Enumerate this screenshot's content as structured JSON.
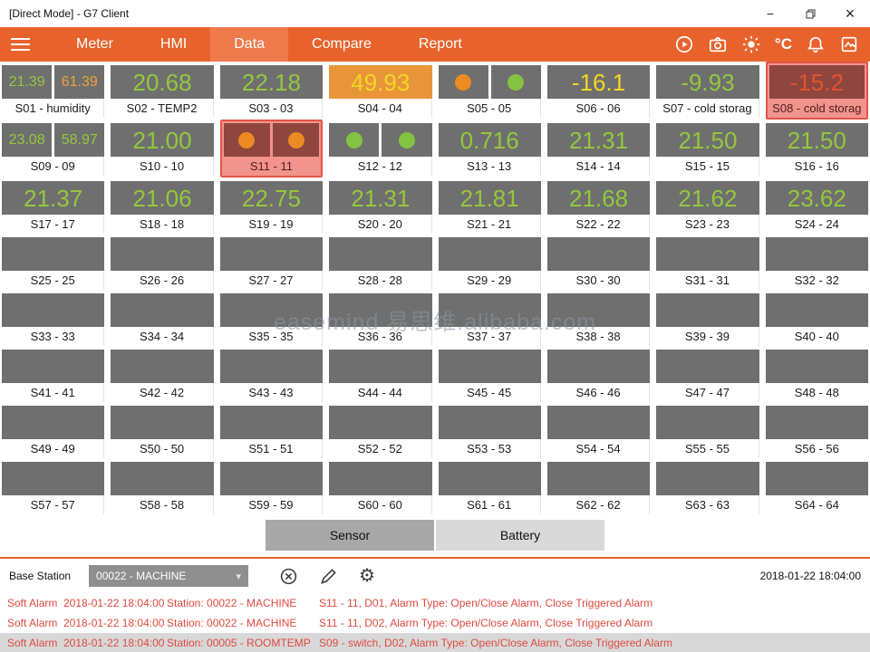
{
  "window": {
    "title": "[Direct Mode] - G7 Client"
  },
  "icons": {
    "minimize": "−",
    "close": "×",
    "chevron_down": "▾",
    "settings": "⚙"
  },
  "nav": {
    "tabs": [
      {
        "label": "Meter"
      },
      {
        "label": "HMI"
      },
      {
        "label": "Data",
        "active": true
      },
      {
        "label": "Compare"
      },
      {
        "label": "Report"
      }
    ],
    "temp_unit": "°C"
  },
  "colors": {
    "nav": "#E8632C",
    "nav_active": "#EF7B4D",
    "box_gray": "#6F6F6F",
    "value_green": "#93C83D",
    "value_orange": "#F0A13A",
    "value_yellow": "#F2D722",
    "value_red": "#E4532C",
    "alarm_pink": "#F2938C",
    "alarm_border": "#E15549",
    "alarm_text": "#E04A3F"
  },
  "grid": {
    "sensors": [
      {
        "label": "S01 - humidity",
        "kind": "dual",
        "values": [
          "21.39",
          "61.39"
        ],
        "colors": [
          "green",
          "orange"
        ]
      },
      {
        "label": "S02 - TEMP2",
        "kind": "value",
        "value": "20.68",
        "color": "green"
      },
      {
        "label": "S03 - 03",
        "kind": "value",
        "value": "22.18",
        "color": "green"
      },
      {
        "label": "S04 - 04",
        "kind": "value",
        "value": "49.93",
        "color": "yellow",
        "box": "orange"
      },
      {
        "label": "S05 - 05",
        "kind": "switch",
        "circles": [
          "orange",
          "green"
        ]
      },
      {
        "label": "S06 - 06",
        "kind": "value",
        "value": "-16.1",
        "color": "yellow"
      },
      {
        "label": "S07 - cold storag",
        "kind": "value",
        "value": "-9.93",
        "color": "green"
      },
      {
        "label": "S08 - cold storag",
        "kind": "value",
        "value": "-15.2",
        "color": "red",
        "alarm": true
      },
      {
        "label": "S09 - 09",
        "kind": "dual",
        "values": [
          "23.08",
          "58.97"
        ],
        "colors": [
          "green",
          "green"
        ]
      },
      {
        "label": "S10 - 10",
        "kind": "value",
        "value": "21.00",
        "color": "green"
      },
      {
        "label": "S11 - 11",
        "kind": "switch",
        "circles": [
          "orange",
          "orange"
        ],
        "alarm": true
      },
      {
        "label": "S12 - 12",
        "kind": "switch",
        "circles": [
          "green",
          "green"
        ]
      },
      {
        "label": "S13 - 13",
        "kind": "value",
        "value": "0.716",
        "color": "green"
      },
      {
        "label": "S14 - 14",
        "kind": "value",
        "value": "21.31",
        "color": "green"
      },
      {
        "label": "S15 - 15",
        "kind": "value",
        "value": "21.50",
        "color": "green"
      },
      {
        "label": "S16 - 16",
        "kind": "value",
        "value": "21.50",
        "color": "green"
      },
      {
        "label": "S17 - 17",
        "kind": "value",
        "value": "21.37",
        "color": "green"
      },
      {
        "label": "S18 - 18",
        "kind": "value",
        "value": "21.06",
        "color": "green"
      },
      {
        "label": "S19 - 19",
        "kind": "value",
        "value": "22.75",
        "color": "green"
      },
      {
        "label": "S20 - 20",
        "kind": "value",
        "value": "21.31",
        "color": "green"
      },
      {
        "label": "S21 - 21",
        "kind": "value",
        "value": "21.81",
        "color": "green"
      },
      {
        "label": "S22 - 22",
        "kind": "value",
        "value": "21.68",
        "color": "green"
      },
      {
        "label": "S23 - 23",
        "kind": "value",
        "value": "21.62",
        "color": "green"
      },
      {
        "label": "S24 - 24",
        "kind": "value",
        "value": "23.62",
        "color": "green"
      },
      {
        "label": "S25 - 25",
        "kind": "empty"
      },
      {
        "label": "S26 - 26",
        "kind": "empty"
      },
      {
        "label": "S27 - 27",
        "kind": "empty"
      },
      {
        "label": "S28 - 28",
        "kind": "empty"
      },
      {
        "label": "S29 - 29",
        "kind": "empty"
      },
      {
        "label": "S30 - 30",
        "kind": "empty"
      },
      {
        "label": "S31 - 31",
        "kind": "empty"
      },
      {
        "label": "S32 - 32",
        "kind": "empty"
      },
      {
        "label": "S33 - 33",
        "kind": "empty"
      },
      {
        "label": "S34 - 34",
        "kind": "empty"
      },
      {
        "label": "S35 - 35",
        "kind": "empty"
      },
      {
        "label": "S36 - 36",
        "kind": "empty"
      },
      {
        "label": "S37 - 37",
        "kind": "empty"
      },
      {
        "label": "S38 - 38",
        "kind": "empty"
      },
      {
        "label": "S39 - 39",
        "kind": "empty"
      },
      {
        "label": "S40 - 40",
        "kind": "empty"
      },
      {
        "label": "S41 - 41",
        "kind": "empty"
      },
      {
        "label": "S42 - 42",
        "kind": "empty"
      },
      {
        "label": "S43 - 43",
        "kind": "empty"
      },
      {
        "label": "S44 - 44",
        "kind": "empty"
      },
      {
        "label": "S45 - 45",
        "kind": "empty"
      },
      {
        "label": "S46 - 46",
        "kind": "empty"
      },
      {
        "label": "S47 - 47",
        "kind": "empty"
      },
      {
        "label": "S48 - 48",
        "kind": "empty"
      },
      {
        "label": "S49 - 49",
        "kind": "empty"
      },
      {
        "label": "S50 - 50",
        "kind": "empty"
      },
      {
        "label": "S51 - 51",
        "kind": "empty"
      },
      {
        "label": "S52 - 52",
        "kind": "empty"
      },
      {
        "label": "S53 - 53",
        "kind": "empty"
      },
      {
        "label": "S54 - 54",
        "kind": "empty"
      },
      {
        "label": "S55 - 55",
        "kind": "empty"
      },
      {
        "label": "S56 - 56",
        "kind": "empty"
      },
      {
        "label": "S57 - 57",
        "kind": "empty"
      },
      {
        "label": "S58 - 58",
        "kind": "empty"
      },
      {
        "label": "S59 - 59",
        "kind": "empty"
      },
      {
        "label": "S60 - 60",
        "kind": "empty"
      },
      {
        "label": "S61 - 61",
        "kind": "empty"
      },
      {
        "label": "S62 - 62",
        "kind": "empty"
      },
      {
        "label": "S63 - 63",
        "kind": "empty"
      },
      {
        "label": "S64 - 64",
        "kind": "empty"
      }
    ]
  },
  "watermark": "easemind 易思维.alibaba.com",
  "controls": {
    "sensor_label": "Sensor",
    "battery_label": "Battery"
  },
  "station_bar": {
    "label": "Base Station",
    "selected": "00022 - MACHINE",
    "timestamp": "2018-01-22 18:04:00"
  },
  "alarms": [
    {
      "type": "Soft Alarm",
      "time": "2018-01-22 18:04:00",
      "station": "Station: 00022 - MACHINE",
      "detail": "S11 - 11, D01, Alarm Type: Open/Close Alarm, Close Triggered Alarm",
      "highlight": false
    },
    {
      "type": "Soft Alarm",
      "time": "2018-01-22 18:04:00",
      "station": "Station: 00022 - MACHINE",
      "detail": "S11 - 11, D02, Alarm Type: Open/Close Alarm, Close Triggered Alarm",
      "highlight": false
    },
    {
      "type": "Soft Alarm",
      "time": "2018-01-22 18:04:00",
      "station": "Station: 00005 - ROOMTEMP",
      "detail": "S09 - switch, D02, Alarm Type: Open/Close Alarm, Close Triggered Alarm",
      "highlight": true
    }
  ]
}
